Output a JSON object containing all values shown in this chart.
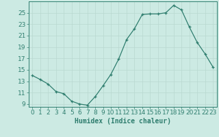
{
  "x": [
    0,
    1,
    2,
    3,
    4,
    5,
    6,
    7,
    8,
    9,
    10,
    11,
    12,
    13,
    14,
    15,
    16,
    17,
    18,
    19,
    20,
    21,
    22,
    23
  ],
  "y": [
    14.0,
    13.3,
    12.5,
    11.2,
    10.8,
    9.5,
    9.0,
    8.8,
    10.3,
    12.2,
    14.2,
    16.9,
    20.3,
    22.2,
    24.7,
    24.8,
    24.8,
    25.0,
    26.3,
    25.5,
    22.5,
    19.8,
    17.8,
    15.5
  ],
  "line_color": "#2e7d6e",
  "marker": "+",
  "bg_color": "#cceae3",
  "grid_color": "#b8d8d0",
  "xlabel": "Humidex (Indice chaleur)",
  "xlim": [
    -0.5,
    23.5
  ],
  "ylim": [
    8.5,
    27.0
  ],
  "yticks": [
    9,
    11,
    13,
    15,
    17,
    19,
    21,
    23,
    25
  ],
  "xticks": [
    0,
    1,
    2,
    3,
    4,
    5,
    6,
    7,
    8,
    9,
    10,
    11,
    12,
    13,
    14,
    15,
    16,
    17,
    18,
    19,
    20,
    21,
    22,
    23
  ],
  "xlabel_fontsize": 7,
  "tick_fontsize": 6.5,
  "tick_color": "#2e7d6e",
  "axis_color": "#2e7d6e",
  "line_width": 0.9,
  "marker_size": 3.5
}
